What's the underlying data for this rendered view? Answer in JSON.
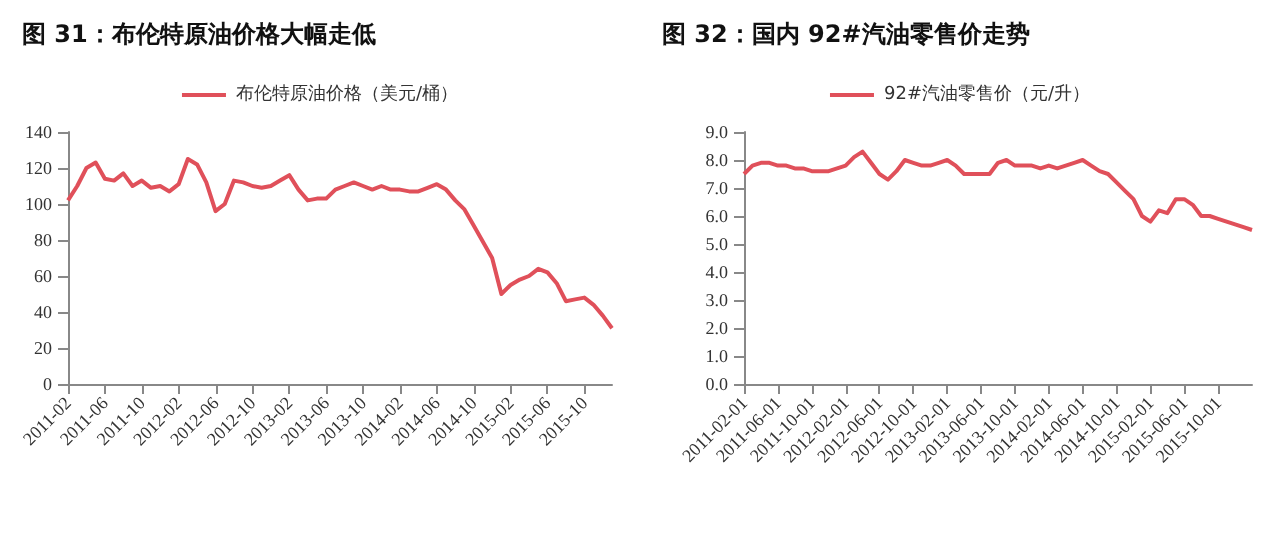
{
  "chart_data": [
    {
      "type": "line",
      "title": "图 31：布伦特原油价格大幅走低",
      "legend": "top",
      "marker": "none",
      "categories": [
        "2011-02",
        null,
        null,
        null,
        "2011-06",
        null,
        null,
        null,
        "2011-10",
        null,
        null,
        null,
        "2012-02",
        null,
        null,
        null,
        "2012-06",
        null,
        null,
        null,
        "2012-10",
        null,
        null,
        null,
        "2013-02",
        null,
        null,
        null,
        "2013-06",
        null,
        null,
        null,
        "2013-10",
        null,
        null,
        null,
        "2014-02",
        null,
        null,
        null,
        "2014-06",
        null,
        null,
        null,
        "2014-10",
        null,
        null,
        null,
        "2015-02",
        null,
        null,
        null,
        "2015-06",
        null,
        null,
        null,
        "2015-10",
        null,
        null,
        null
      ],
      "series": [
        {
          "name": "布伦特原油价格（美元/桶）",
          "color": "#e0505a",
          "values": [
            102,
            110,
            120,
            123,
            114,
            113,
            117,
            110,
            113,
            109,
            110,
            107,
            111,
            125,
            122,
            112,
            96,
            100,
            113,
            112,
            110,
            109,
            110,
            113,
            116,
            108,
            102,
            103,
            103,
            108,
            110,
            112,
            110,
            108,
            110,
            108,
            108,
            107,
            107,
            109,
            111,
            108,
            102,
            97,
            88,
            79,
            70,
            50,
            55,
            58,
            60,
            64,
            62,
            56,
            46,
            47,
            48,
            44,
            38,
            31
          ]
        }
      ],
      "ylim": [
        0,
        140
      ],
      "yticks": [
        0,
        20,
        40,
        60,
        80,
        100,
        120,
        140
      ]
    },
    {
      "type": "line",
      "title": "图 32：国内 92#汽油零售价走势",
      "legend": "top",
      "marker": "none",
      "categories": [
        "2011-02-01",
        null,
        null,
        null,
        "2011-06-01",
        null,
        null,
        null,
        "2011-10-01",
        null,
        null,
        null,
        "2012-02-01",
        null,
        null,
        null,
        "2012-06-01",
        null,
        null,
        null,
        "2012-10-01",
        null,
        null,
        null,
        "2013-02-01",
        null,
        null,
        null,
        "2013-06-01",
        null,
        null,
        null,
        "2013-10-01",
        null,
        null,
        null,
        "2014-02-01",
        null,
        null,
        null,
        "2014-06-01",
        null,
        null,
        null,
        "2014-10-01",
        null,
        null,
        null,
        "2015-02-01",
        null,
        null,
        null,
        "2015-06-01",
        null,
        null,
        null,
        "2015-10-01",
        null,
        null,
        null,
        null
      ],
      "series": [
        {
          "name": "92#汽油零售价（元/升）",
          "color": "#e0505a",
          "values": [
            7.5,
            7.8,
            7.9,
            7.9,
            7.8,
            7.8,
            7.7,
            7.7,
            7.6,
            7.6,
            7.6,
            7.7,
            7.8,
            8.1,
            8.3,
            7.9,
            7.5,
            7.3,
            7.6,
            8.0,
            7.9,
            7.8,
            7.8,
            7.9,
            8.0,
            7.8,
            7.5,
            7.5,
            7.5,
            7.5,
            7.9,
            8.0,
            7.8,
            7.8,
            7.8,
            7.7,
            7.8,
            7.7,
            7.8,
            7.9,
            8.0,
            7.8,
            7.6,
            7.5,
            7.2,
            6.9,
            6.6,
            6.0,
            5.8,
            6.2,
            6.1,
            6.6,
            6.6,
            6.4,
            6.0,
            6.0,
            5.9,
            5.8,
            5.7,
            5.6,
            5.5
          ]
        }
      ],
      "ylim": [
        0,
        9
      ],
      "yticks": [
        {
          "value": 0,
          "label": "0.0"
        },
        {
          "value": 1,
          "label": "1.0"
        },
        {
          "value": 2,
          "label": "2.0"
        },
        {
          "value": 3,
          "label": "3.0"
        },
        {
          "value": 4,
          "label": "4.0"
        },
        {
          "value": 5,
          "label": "5.0"
        },
        {
          "value": 6,
          "label": "6.0"
        },
        {
          "value": 7,
          "label": "7.0"
        },
        {
          "value": 8,
          "label": "8.0"
        },
        {
          "value": 9,
          "label": "9.0"
        }
      ]
    }
  ]
}
